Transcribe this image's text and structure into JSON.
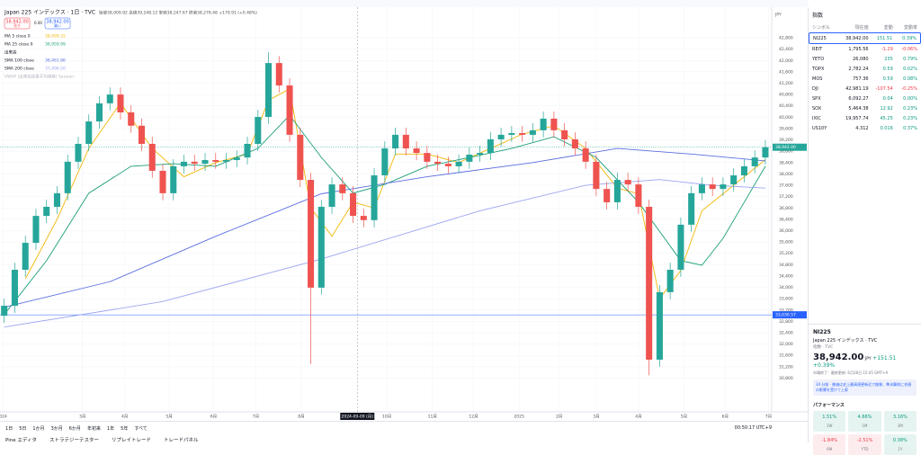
{
  "chart_data": {
    "type": "candlestick",
    "title": "Japan 225 インデックス · 1日 · TVC",
    "ohlc_text": "始値38,909.92 高値39,248.12 安値38,247.67 終値38,278.48 +179.91 (+0.48%)",
    "sell_price": "38,942.00",
    "sell_label": "売り",
    "spread": "0.00",
    "buy_price": "38,942.00",
    "buy_label": "買い",
    "volume_label": "出来高",
    "vwap_label": "VWAP (出来高加重平均価格) Session",
    "up_color": "#26a69a",
    "down_color": "#ef5350",
    "candles": [
      [
        33000,
        33600,
        32750,
        33350
      ],
      [
        33350,
        34870,
        33100,
        34620
      ],
      [
        34620,
        35820,
        34370,
        35570
      ],
      [
        35570,
        36770,
        35320,
        36520
      ],
      [
        36520,
        37090,
        36270,
        36840
      ],
      [
        36840,
        37570,
        36590,
        37320
      ],
      [
        37320,
        38680,
        37070,
        38430
      ],
      [
        38430,
        39310,
        38180,
        39060
      ],
      [
        39060,
        40100,
        38810,
        39850
      ],
      [
        39850,
        40740,
        39600,
        40490
      ],
      [
        40490,
        41050,
        40240,
        40800
      ],
      [
        40800,
        41050,
        39920,
        40170
      ],
      [
        40170,
        40420,
        39450,
        39700
      ],
      [
        39700,
        39950,
        38810,
        39060
      ],
      [
        39060,
        39310,
        37860,
        38110
      ],
      [
        38110,
        38360,
        37070,
        37320
      ],
      [
        37320,
        38520,
        37070,
        38270
      ],
      [
        38270,
        38680,
        38020,
        38430
      ],
      [
        38430,
        38680,
        38110,
        38360
      ],
      [
        38360,
        38740,
        38110,
        38490
      ],
      [
        38490,
        38740,
        38180,
        38430
      ],
      [
        38430,
        38740,
        38180,
        38490
      ],
      [
        38490,
        38830,
        38240,
        38580
      ],
      [
        38580,
        39310,
        38330,
        39060
      ],
      [
        39060,
        40260,
        38810,
        40010
      ],
      [
        40010,
        42300,
        39760,
        41910
      ],
      [
        41910,
        42160,
        40870,
        41120
      ],
      [
        41120,
        41370,
        39130,
        39380
      ],
      [
        39380,
        39630,
        37540,
        37790
      ],
      [
        37790,
        38040,
        31300,
        33990
      ],
      [
        33990,
        37090,
        33740,
        36840
      ],
      [
        36840,
        37880,
        36590,
        37630
      ],
      [
        37630,
        37880,
        37070,
        37320
      ],
      [
        37320,
        37570,
        36270,
        36520
      ],
      [
        36520,
        36770,
        36120,
        36370
      ],
      [
        36370,
        38200,
        36120,
        37950
      ],
      [
        37950,
        39150,
        37700,
        38900
      ],
      [
        38900,
        39630,
        38650,
        39380
      ],
      [
        39380,
        39630,
        38650,
        38900
      ],
      [
        38900,
        39150,
        38490,
        38740
      ],
      [
        38740,
        38990,
        38180,
        38430
      ],
      [
        38430,
        38680,
        38110,
        38360
      ],
      [
        38360,
        38610,
        38020,
        38270
      ],
      [
        38270,
        38680,
        38020,
        38430
      ],
      [
        38430,
        38930,
        38180,
        38680
      ],
      [
        38680,
        38990,
        38430,
        38740
      ],
      [
        38740,
        39470,
        38490,
        39220
      ],
      [
        39220,
        39630,
        38970,
        39380
      ],
      [
        39380,
        39690,
        39130,
        39440
      ],
      [
        39440,
        39690,
        39130,
        39380
      ],
      [
        39380,
        39790,
        39130,
        39540
      ],
      [
        39540,
        40200,
        39290,
        39950
      ],
      [
        39950,
        40200,
        39290,
        39540
      ],
      [
        39540,
        39790,
        38970,
        39220
      ],
      [
        39220,
        39470,
        38650,
        38900
      ],
      [
        38900,
        39150,
        38180,
        38430
      ],
      [
        38430,
        38680,
        37220,
        37470
      ],
      [
        37470,
        37720,
        36750,
        37000
      ],
      [
        37000,
        38040,
        36750,
        37790
      ],
      [
        37790,
        38040,
        37380,
        37630
      ],
      [
        37630,
        37880,
        36590,
        36840
      ],
      [
        36840,
        37090,
        30900,
        31450
      ],
      [
        31450,
        34080,
        31200,
        33830
      ],
      [
        33830,
        34870,
        33580,
        34620
      ],
      [
        34620,
        36460,
        34370,
        36210
      ],
      [
        36210,
        37570,
        35960,
        37320
      ],
      [
        37320,
        37880,
        37070,
        37630
      ],
      [
        37630,
        37880,
        37220,
        37470
      ],
      [
        37470,
        37880,
        37220,
        37630
      ],
      [
        37630,
        38200,
        37380,
        37950
      ],
      [
        37950,
        38520,
        37700,
        38270
      ],
      [
        38270,
        38830,
        38020,
        38580
      ],
      [
        38580,
        39190,
        38330,
        38942
      ]
    ],
    "series": [
      {
        "name": "MA 5 close 0",
        "value_label": "38,499.32",
        "color": "#f2b705",
        "x": [
          2,
          5,
          8,
          11,
          14,
          17,
          20,
          23,
          25,
          27,
          29,
          31,
          33,
          35,
          37,
          40,
          43,
          46,
          49,
          52,
          55,
          58,
          60,
          62,
          64,
          66,
          69,
          72
        ],
        "values": [
          34300,
          36400,
          38900,
          40500,
          38900,
          37900,
          38400,
          38700,
          40600,
          41000,
          36800,
          35800,
          37000,
          36800,
          38700,
          38700,
          38400,
          38900,
          39400,
          39700,
          38900,
          37500,
          37300,
          33600,
          34600,
          36700,
          37600,
          38500
        ]
      },
      {
        "name": "MA 25 close 0",
        "value_label": "36,959.99",
        "color": "#1b9e77",
        "x": [
          0,
          4,
          8,
          12,
          16,
          20,
          24,
          27,
          30,
          33,
          36,
          40,
          44,
          48,
          52,
          56,
          60,
          64,
          66,
          68,
          70,
          72
        ],
        "values": [
          33040,
          34940,
          37320,
          38270,
          38360,
          38270,
          38900,
          40070,
          38580,
          37320,
          37630,
          38270,
          38580,
          38900,
          39310,
          38580,
          37000,
          34940,
          34780,
          35730,
          37000,
          38270
        ]
      },
      {
        "name": "SMA 100 close",
        "value_label": "38,461.86",
        "color": "#5b6ee1",
        "x": [
          0,
          10,
          20,
          30,
          40,
          50,
          58,
          65,
          72
        ],
        "values": [
          33300,
          34200,
          35800,
          37300,
          37900,
          38400,
          38900,
          38700,
          38460
        ]
      },
      {
        "name": "SMA 200 close",
        "value_label": "37,496.50",
        "color": "#9aa5f0",
        "x": [
          0,
          15,
          30,
          45,
          55,
          62,
          67,
          72
        ],
        "values": [
          32600,
          33500,
          35000,
          36700,
          37600,
          37800,
          37600,
          37500
        ]
      }
    ],
    "xlim": [
      -0.4,
      72.6
    ],
    "ylim": [
      29610,
      43880
    ],
    "xticks": [
      {
        "value": -0.1,
        "label": "024"
      },
      {
        "value": 7.4,
        "label": "3月"
      },
      {
        "value": 11.4,
        "label": "4月"
      },
      {
        "value": 15.6,
        "label": "5月"
      },
      {
        "value": 19.8,
        "label": "6月"
      },
      {
        "value": 23.8,
        "label": "7月"
      },
      {
        "value": 28.1,
        "label": "8月"
      },
      {
        "value": 36.2,
        "label": "10月"
      },
      {
        "value": 40.5,
        "label": "11月"
      },
      {
        "value": 44.4,
        "label": "12月"
      },
      {
        "value": 48.7,
        "label": "2025"
      },
      {
        "value": 52.5,
        "label": "2月"
      },
      {
        "value": 56,
        "label": "3月"
      },
      {
        "value": 60,
        "label": "4月"
      },
      {
        "value": 64.3,
        "label": "5月"
      },
      {
        "value": 68.2,
        "label": "6月"
      },
      {
        "value": 72.3,
        "label": "7月"
      }
    ],
    "crosshair": {
      "value": 33.4,
      "label": "2024-09-09 (月)"
    },
    "yticks": [
      {
        "value": 42800,
        "label": "42,800"
      },
      {
        "value": 42400,
        "label": "42,400"
      },
      {
        "value": 42000,
        "label": "42,000"
      },
      {
        "value": 41600,
        "label": "41,600"
      },
      {
        "value": 41200,
        "label": "41,200"
      },
      {
        "value": 40800,
        "label": "40,800"
      },
      {
        "value": 40400,
        "label": "40,400"
      },
      {
        "value": 40000,
        "label": "40,000"
      },
      {
        "value": 39600,
        "label": "39,600"
      },
      {
        "value": 39200,
        "label": "39,200"
      },
      {
        "value": 38800,
        "label": "38,800"
      },
      {
        "value": 38400,
        "label": "38,400"
      },
      {
        "value": 38000,
        "label": "38,000"
      },
      {
        "value": 37600,
        "label": "37,600"
      },
      {
        "value": 37200,
        "label": "37,200"
      },
      {
        "value": 36800,
        "label": "36,800"
      },
      {
        "value": 36400,
        "label": "36,400"
      },
      {
        "value": 36000,
        "label": "36,000"
      },
      {
        "value": 35600,
        "label": "35,600"
      },
      {
        "value": 35200,
        "label": "35,200"
      },
      {
        "value": 34800,
        "label": "34,800"
      },
      {
        "value": 34400,
        "label": "34,400"
      },
      {
        "value": 34000,
        "label": "34,000"
      },
      {
        "value": 33600,
        "label": "33,600"
      },
      {
        "value": 33200,
        "label": "33,200"
      },
      {
        "value": 32800,
        "label": "32,800"
      },
      {
        "value": 32400,
        "label": "32,400"
      },
      {
        "value": 32000,
        "label": "32,000"
      },
      {
        "value": 31600,
        "label": "31,600"
      },
      {
        "value": 31200,
        "label": "31,200"
      },
      {
        "value": 30800,
        "label": "30,800"
      }
    ],
    "currency": "JPY",
    "price_lines": [
      {
        "value": 38942,
        "label": "38,942.00",
        "color": "#26a69a"
      },
      {
        "value": 33030.57,
        "label": "33,030.57",
        "color": "#2962ff"
      }
    ],
    "grid": true
  },
  "watchlist": {
    "title": "指数",
    "columns": [
      "シンボル",
      "現在値",
      "変動",
      "変動率"
    ],
    "rows": [
      [
        "NI225",
        "38,942.00",
        "151.51",
        "0.39%"
      ],
      [
        "REIT",
        "1,795.56",
        "-1.29",
        "-0.06%"
      ],
      [
        "YETO",
        "26,080",
        "235",
        "0.79%"
      ],
      [
        "TOPX",
        "2,782.24",
        "0.59",
        "0.02%"
      ],
      [
        "MOS",
        "757.36",
        "0.59",
        "0.08%"
      ],
      [
        "DJI",
        "42,981.19",
        "-107.54",
        "-0.25%"
      ],
      [
        "SPX",
        "6,092.27",
        "0.04",
        "0.00%"
      ],
      [
        "SOX",
        "5,464.38",
        "12.92",
        "0.23%"
      ],
      [
        "IXIC",
        "19,957.74",
        "45.25",
        "0.23%"
      ],
      [
        "US10Y",
        "4.312",
        "0.016",
        "0.37%"
      ]
    ]
  },
  "detail": {
    "symbol": "NI225",
    "name": "Japan 225 インデックス · TVC",
    "kind": "指数 · TVC",
    "price": "38,942.00",
    "currency": "JPY",
    "change": "+151.51 +0.39%",
    "status": "市場終了 · 最終更新: 6月28日 15:45 GMT+9",
    "news": "34 分前 · 株価は史上最高値更新近で推移、準決算前に合値の影響を受けて上昇",
    "performance_title": "パフォーマンス",
    "performance": [
      [
        "1.51%",
        "1W"
      ],
      [
        "4.66%",
        "1M"
      ],
      [
        "3.16%",
        "3M"
      ],
      [
        "-1.84%",
        "6M"
      ],
      [
        "-2.51%",
        "YTD"
      ],
      [
        "0.38%",
        "1Y"
      ]
    ]
  },
  "bottom_bar": {
    "ranges": [
      "1日",
      "5日",
      "1か月",
      "3か月",
      "6か月",
      "年初来",
      "1年",
      "5年",
      "すべて"
    ],
    "clock": "00:50:17 UTC+9",
    "tabs": [
      "Pine エディタ",
      "ストラテジーテスター",
      "リプレイトレード",
      "トレードパネル"
    ]
  }
}
